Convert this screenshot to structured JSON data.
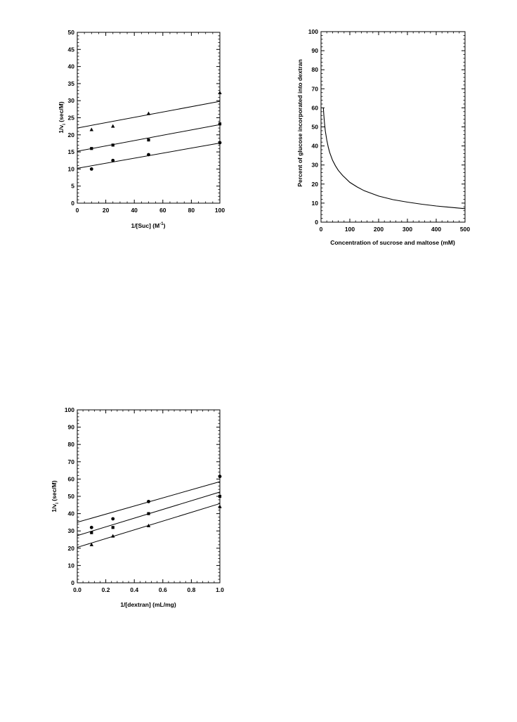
{
  "chart_data": [
    {
      "type": "scatter",
      "x_values": [
        10,
        25,
        50,
        100
      ],
      "xlim": [
        0,
        100
      ],
      "ylim": [
        0,
        50
      ],
      "xticks": [
        "0",
        "20",
        "40",
        "60",
        "80",
        "100"
      ],
      "yticks": [
        "0",
        "5",
        "10",
        "15",
        "20",
        "25",
        "30",
        "35",
        "40",
        "45",
        "50"
      ],
      "xlabel": "1/[Suc]  (M",
      "xlabel_sup": "-1",
      "xlabel_end": ")",
      "ylabel": "1/v",
      "ylabel_sub": "i",
      "ylabel_end": "  (sec/M)",
      "series": [
        {
          "marker": "triangle",
          "y": [
            21.5,
            22.5,
            26.2,
            32.3
          ],
          "fit": [
            22.0,
            29.8
          ]
        },
        {
          "marker": "square",
          "y": [
            16.0,
            17.0,
            18.5,
            23.2
          ],
          "fit": [
            15.2,
            23.0
          ]
        },
        {
          "marker": "circle",
          "y": [
            10.0,
            12.5,
            14.2,
            17.7
          ],
          "fit": [
            10.2,
            17.6
          ]
        }
      ]
    },
    {
      "type": "line",
      "xlim": [
        0,
        500
      ],
      "ylim": [
        0,
        100
      ],
      "xticks": [
        "0",
        "100",
        "200",
        "300",
        "400",
        "500"
      ],
      "yticks": [
        "0",
        "10",
        "20",
        "30",
        "40",
        "50",
        "60",
        "70",
        "80",
        "90",
        "100"
      ],
      "xlabel": "Concentration of sucrose and maltose (mM)",
      "ylabel": "Percent of glucose incorporated into dextran",
      "x": [
        8,
        10,
        12,
        15,
        20,
        25,
        30,
        40,
        50,
        60,
        75,
        100,
        125,
        150,
        200,
        250,
        300,
        350,
        400,
        450,
        500
      ],
      "y": [
        60,
        55.8,
        52.2,
        47.9,
        43.1,
        39.4,
        36.6,
        32.5,
        29.6,
        27.2,
        24.5,
        20.9,
        18.5,
        16.5,
        13.7,
        11.8,
        10.5,
        9.4,
        8.5,
        7.8,
        7.1
      ]
    },
    {
      "type": "scatter",
      "x_values": [
        0.1,
        0.25,
        0.5,
        1.0
      ],
      "xlim": [
        0,
        1
      ],
      "ylim": [
        0,
        100
      ],
      "xticks": [
        "0.0",
        "0.2",
        "0.4",
        "0.6",
        "0.8",
        "1.0"
      ],
      "yticks": [
        "0",
        "10",
        "20",
        "30",
        "40",
        "50",
        "60",
        "70",
        "80",
        "90",
        "100"
      ],
      "xlabel": "1/[dextran]  (mL/mg)",
      "ylabel": "1/v",
      "ylabel_sub": "i",
      "ylabel_end": " (sec/M)",
      "series": [
        {
          "marker": "circle",
          "y": [
            32,
            37,
            47,
            61.5
          ],
          "fit": [
            35.0,
            58.5
          ]
        },
        {
          "marker": "square",
          "y": [
            29,
            32,
            40,
            50
          ],
          "fit": [
            27.3,
            52.5
          ]
        },
        {
          "marker": "triangle",
          "y": [
            22,
            27,
            33,
            44
          ],
          "fit": [
            20.5,
            45.8
          ]
        }
      ]
    }
  ]
}
